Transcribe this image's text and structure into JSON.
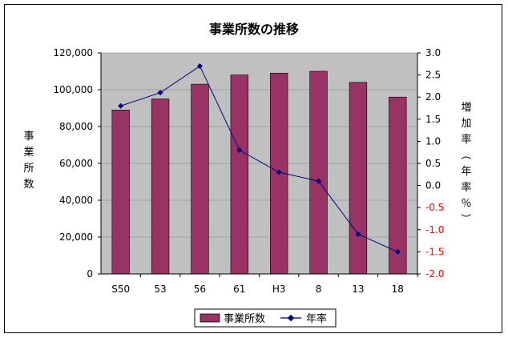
{
  "chart_data": {
    "type": "bar",
    "title": "事業所数の推移",
    "categories": [
      "S50",
      "53",
      "56",
      "61",
      "H3",
      "8",
      "13",
      "18"
    ],
    "series": [
      {
        "name": "事業所数",
        "type": "bar",
        "axis": "left",
        "color": "#993366",
        "values": [
          89000,
          95000,
          103000,
          108000,
          109000,
          110000,
          104000,
          96000
        ]
      },
      {
        "name": "年率",
        "type": "line",
        "axis": "right",
        "color": "#000080",
        "values": [
          1.8,
          2.1,
          2.7,
          0.8,
          0.3,
          0.1,
          -1.1,
          -1.5
        ]
      }
    ],
    "ylabel": "事業所数",
    "y2label": "増加率（年率％）",
    "ylim": [
      0,
      120000
    ],
    "y2lim": [
      -2.0,
      3.0
    ],
    "yticks": [
      "0",
      "20,000",
      "40,000",
      "60,000",
      "80,000",
      "100,000",
      "120,000"
    ],
    "y2ticks": [
      "-2.0",
      "-1.5",
      "-1.0",
      "-0.5",
      "0.0",
      "0.5",
      "1.0",
      "1.5",
      "2.0",
      "2.5",
      "3.0"
    ],
    "legend_position": "bottom",
    "plot_background": "#c0c0c0",
    "negative_tick_color": "#ff0000"
  }
}
